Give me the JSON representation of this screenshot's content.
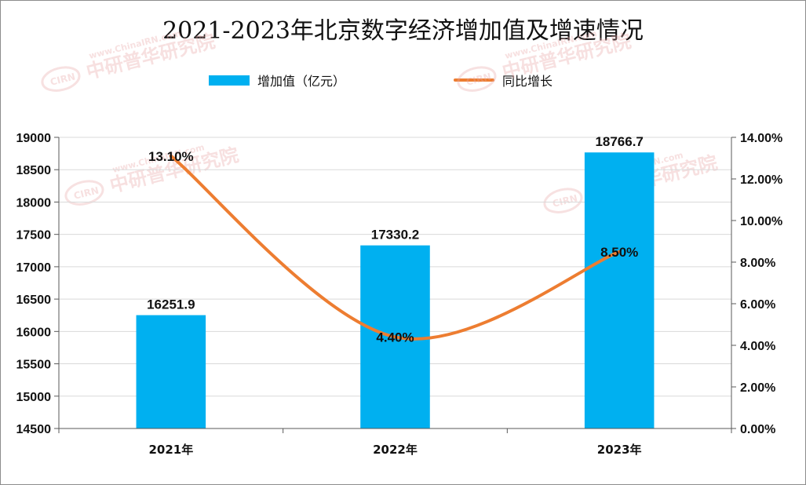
{
  "chart_data": {
    "type": "bar",
    "title": "2021-2023年北京数字经济增加值及增速情况",
    "categories": [
      "2021年",
      "2022年",
      "2023年"
    ],
    "series": [
      {
        "name": "增加值（亿元）",
        "type": "bar",
        "axis": "left",
        "values": [
          16251.9,
          17330.2,
          18766.7
        ],
        "labels": [
          "16251.9",
          "17330.2",
          "18766.7"
        ]
      },
      {
        "name": "同比增长",
        "type": "line",
        "axis": "right",
        "values": [
          13.1,
          4.4,
          8.5
        ],
        "labels": [
          "13.10%",
          "4.40%",
          "8.50%"
        ]
      }
    ],
    "y_left": {
      "ylim": [
        14500,
        19000
      ],
      "ticks": [
        14500,
        15000,
        15500,
        16000,
        16500,
        17000,
        17500,
        18000,
        18500,
        19000
      ],
      "tick_labels": [
        "14500",
        "15000",
        "15500",
        "16000",
        "16500",
        "17000",
        "17500",
        "18000",
        "18500",
        "19000"
      ]
    },
    "y_right": {
      "ylim": [
        0,
        14
      ],
      "ticks": [
        0,
        2,
        4,
        6,
        8,
        10,
        12,
        14
      ],
      "tick_labels": [
        "0.00%",
        "2.00%",
        "4.00%",
        "6.00%",
        "8.00%",
        "10.00%",
        "12.00%",
        "14.00%"
      ]
    },
    "legend": "top-center",
    "grid": true,
    "colors": {
      "bar": "#00B0F0",
      "line": "#ED7D31",
      "grid": "#d9d9d9",
      "axis": "#595959"
    },
    "watermark_text": [
      "中研普华研究院",
      "www.ChinaIRN.com",
      "CIRN"
    ]
  }
}
